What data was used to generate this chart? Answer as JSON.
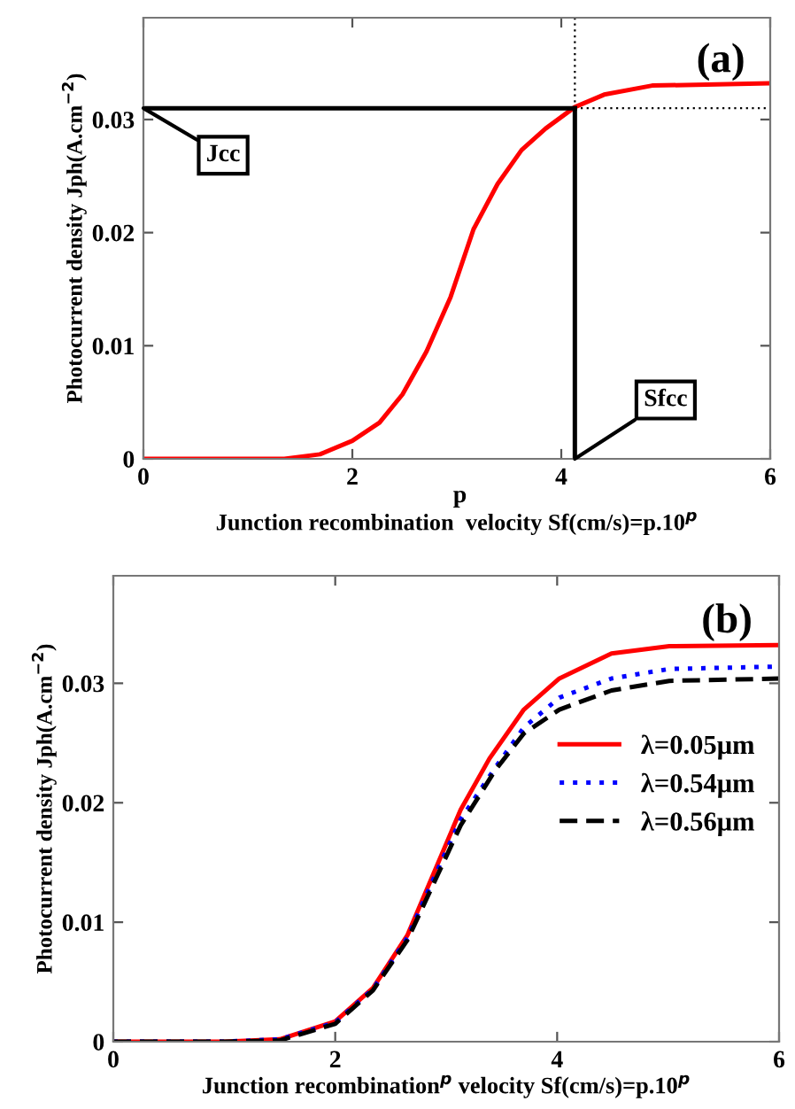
{
  "chart_data": [
    {
      "type": "line",
      "xlabel": "Junction recombination  velocity Sf(cm/s)=p.10$^{p}$",
      "ylabel": "Photocurrent density Jph(A.cm$^{−2}$)",
      "xlim": [
        0,
        6
      ],
      "ylim": [
        0,
        0.039
      ],
      "xticks": [
        0,
        2,
        4,
        6
      ],
      "yticks": [
        0,
        0.01,
        0.02,
        0.03
      ],
      "grid": false,
      "legend": false,
      "annotations": [
        "(a)",
        "p",
        {
          "text": "Jcc",
          "x": 0,
          "y": 0.031
        },
        {
          "text": "Sfcc",
          "x": 4.13,
          "y": 0
        }
      ],
      "series": [
        {
          "color": "#ff0000",
          "line_style": "solid",
          "x": [
            0,
            1,
            1.35,
            1.69,
            2.0,
            2.26,
            2.48,
            2.71,
            2.94,
            3.16,
            3.39,
            3.62,
            3.85,
            4.13,
            4.41,
            4.87,
            6
          ],
          "values": [
            0,
            0,
            0,
            0.0004,
            0.0016,
            0.0032,
            0.0057,
            0.0095,
            0.0143,
            0.0203,
            0.0243,
            0.0273,
            0.0292,
            0.0311,
            0.0322,
            0.033,
            0.0332
          ]
        },
        {
          "color": "#000000",
          "line_style": "solid",
          "x": [
            0,
            4.13
          ],
          "values": [
            0.031,
            0.031
          ]
        },
        {
          "color": "#000000",
          "line_style": "solid",
          "x": [
            4.13,
            4.13
          ],
          "values": [
            0,
            0.031
          ]
        },
        {
          "color": "#000000",
          "line_style": "dotted",
          "x": [
            4.13,
            6
          ],
          "values": [
            0.031,
            0.031
          ]
        },
        {
          "color": "#000000",
          "line_style": "dotted",
          "x": [
            4.13,
            4.13
          ],
          "values": [
            0.031,
            0.039
          ]
        }
      ]
    },
    {
      "type": "line",
      "xlabel": "Junction recombination$^{p}$ velocity Sf(cm/s)=p.10$^{p}$",
      "ylabel": "Photocurrent density Jph(A.cm$^{−2}$)",
      "xlim": [
        0,
        6
      ],
      "ylim": [
        0,
        0.039
      ],
      "xticks": [
        0,
        2,
        4,
        6
      ],
      "yticks": [
        0,
        0.01,
        0.02,
        0.03
      ],
      "grid": false,
      "legend": "center right",
      "annotations": [
        "(b)"
      ],
      "series": [
        {
          "name": "λ=0.05μm",
          "color": "#ff0000",
          "line_style": "solid",
          "x": [
            0,
            1,
            1.5,
            2.0,
            2.34,
            2.65,
            2.86,
            3.13,
            3.39,
            3.7,
            4.02,
            4.49,
            5.01,
            6
          ],
          "values": [
            0,
            0,
            0.0002,
            0.0017,
            0.0045,
            0.0089,
            0.0135,
            0.0194,
            0.0237,
            0.0278,
            0.0304,
            0.0325,
            0.0331,
            0.0332
          ]
        },
        {
          "name": "λ=0.54μm",
          "color": "#0000ff",
          "line_style": "dotted",
          "x": [
            0,
            1,
            1.5,
            2.0,
            2.34,
            2.65,
            2.86,
            3.13,
            3.44,
            3.7,
            4.02,
            4.49,
            5.01,
            6
          ],
          "values": [
            0,
            0,
            0.0002,
            0.0016,
            0.0044,
            0.0087,
            0.0131,
            0.0186,
            0.0229,
            0.0263,
            0.0288,
            0.0304,
            0.0312,
            0.0314
          ]
        },
        {
          "name": "λ=0.56μm",
          "color": "#000000",
          "line_style": "dashed",
          "x": [
            0,
            1,
            1.5,
            2.0,
            2.34,
            2.65,
            2.86,
            3.13,
            3.44,
            3.7,
            4.02,
            4.49,
            5.01,
            6
          ],
          "values": [
            0,
            0,
            0.0001,
            0.0015,
            0.0043,
            0.0085,
            0.0127,
            0.0181,
            0.0227,
            0.0258,
            0.0278,
            0.0294,
            0.0302,
            0.0304
          ]
        }
      ]
    }
  ]
}
